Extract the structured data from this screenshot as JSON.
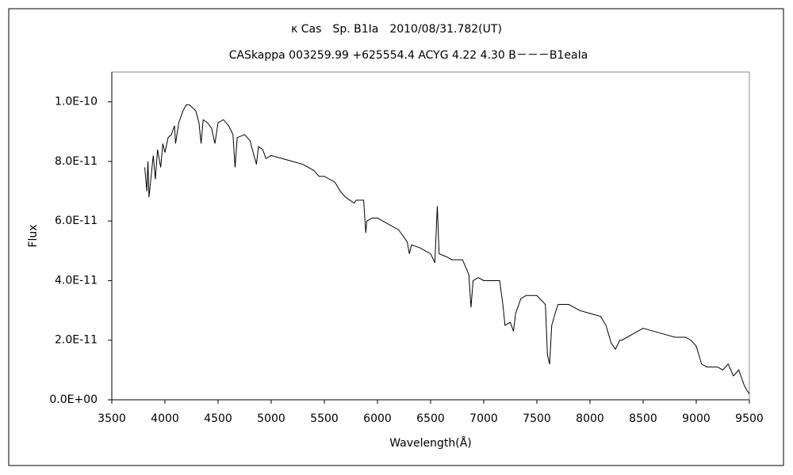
{
  "chart_data": {
    "type": "line",
    "title": "κ Cas　Sp. B1Ia　2010/08/31.782(UT)",
    "subtitle": "CASkappa 003259.99 +625554.4 ACYG 4.22 4.30 B－－－B1eaIa",
    "x_label": "Wavelength(Å)",
    "y_label": "Flux",
    "xlim": [
      3500,
      9500
    ],
    "xticks": [
      3500,
      4000,
      4500,
      5000,
      5500,
      6000,
      6500,
      7000,
      7500,
      8000,
      8500,
      9000,
      9500
    ],
    "ylim": [
      0,
      1.1e-10
    ],
    "yticks": [
      {
        "value": 0,
        "label": "0.0E+00"
      },
      {
        "value": 2e-11,
        "label": "2.0E-11"
      },
      {
        "value": 4e-11,
        "label": "4.0E-11"
      },
      {
        "value": 6e-11,
        "label": "6.0E-11"
      },
      {
        "value": 8e-11,
        "label": "8.0E-11"
      },
      {
        "value": 1e-10,
        "label": "1.0E-10"
      }
    ],
    "grid": false,
    "color": "#000000",
    "x": [
      3810,
      3830,
      3840,
      3850,
      3870,
      3890,
      3910,
      3930,
      3960,
      3980,
      4000,
      4030,
      4060,
      4090,
      4100,
      4130,
      4170,
      4200,
      4230,
      4260,
      4290,
      4320,
      4340,
      4360,
      4400,
      4440,
      4470,
      4500,
      4550,
      4600,
      4640,
      4660,
      4680,
      4750,
      4800,
      4861,
      4880,
      4920,
      4950,
      5000,
      5100,
      5200,
      5300,
      5400,
      5450,
      5500,
      5600,
      5650,
      5700,
      5780,
      5800,
      5870,
      5890,
      5900,
      5950,
      6000,
      6100,
      6200,
      6280,
      6300,
      6320,
      6400,
      6500,
      6540,
      6563,
      6580,
      6650,
      6700,
      6800,
      6860,
      6880,
      6900,
      6950,
      7000,
      7100,
      7150,
      7180,
      7200,
      7250,
      7280,
      7300,
      7350,
      7400,
      7500,
      7580,
      7600,
      7620,
      7640,
      7680,
      7700,
      7800,
      7900,
      8000,
      8100,
      8150,
      8200,
      8240,
      8280,
      8300,
      8400,
      8500,
      8600,
      8700,
      8800,
      8900,
      8950,
      9000,
      9050,
      9100,
      9200,
      9250,
      9300,
      9350,
      9400,
      9450,
      9480,
      9500
    ],
    "values": [
      7.8e-11,
      7e-11,
      8e-11,
      6.8e-11,
      7.5e-11,
      8.2e-11,
      7.4e-11,
      8.4e-11,
      7.8e-11,
      8.6e-11,
      8.3e-11,
      8.8e-11,
      8.9e-11,
      9.2e-11,
      8.6e-11,
      9.3e-11,
      9.7e-11,
      9.9e-11,
      9.9e-11,
      9.8e-11,
      9.7e-11,
      9.3e-11,
      8.6e-11,
      9.4e-11,
      9.3e-11,
      9.1e-11,
      8.6e-11,
      9.3e-11,
      9.4e-11,
      9.2e-11,
      8.9e-11,
      7.8e-11,
      8.8e-11,
      8.9e-11,
      8.7e-11,
      7.9e-11,
      8.5e-11,
      8.4e-11,
      8.1e-11,
      8.2e-11,
      8.1e-11,
      8e-11,
      7.9e-11,
      7.7e-11,
      7.5e-11,
      7.5e-11,
      7.3e-11,
      7e-11,
      6.8e-11,
      6.6e-11,
      6.7e-11,
      6.7e-11,
      5.6e-11,
      6e-11,
      6.1e-11,
      6.1e-11,
      5.9e-11,
      5.7e-11,
      5.3e-11,
      4.9e-11,
      5.2e-11,
      5.1e-11,
      4.9e-11,
      4.6e-11,
      6.5e-11,
      4.9e-11,
      4.8e-11,
      4.7e-11,
      4.7e-11,
      4.2e-11,
      3.1e-11,
      4e-11,
      4.1e-11,
      4e-11,
      4e-11,
      4e-11,
      3.2e-11,
      2.5e-11,
      2.6e-11,
      2.3e-11,
      2.9e-11,
      3.4e-11,
      3.5e-11,
      3.5e-11,
      3.2e-11,
      1.5e-11,
      1.2e-11,
      2.5e-11,
      3e-11,
      3.2e-11,
      3.2e-11,
      3e-11,
      2.9e-11,
      2.8e-11,
      2.5e-11,
      1.9e-11,
      1.7e-11,
      2e-11,
      2e-11,
      2.2e-11,
      2.4e-11,
      2.3e-11,
      2.2e-11,
      2.1e-11,
      2.1e-11,
      2e-11,
      1.8e-11,
      1.2e-11,
      1.1e-11,
      1.1e-11,
      1e-11,
      1.2e-11,
      8e-12,
      1e-11,
      5e-12,
      3e-12,
      2e-12
    ]
  }
}
